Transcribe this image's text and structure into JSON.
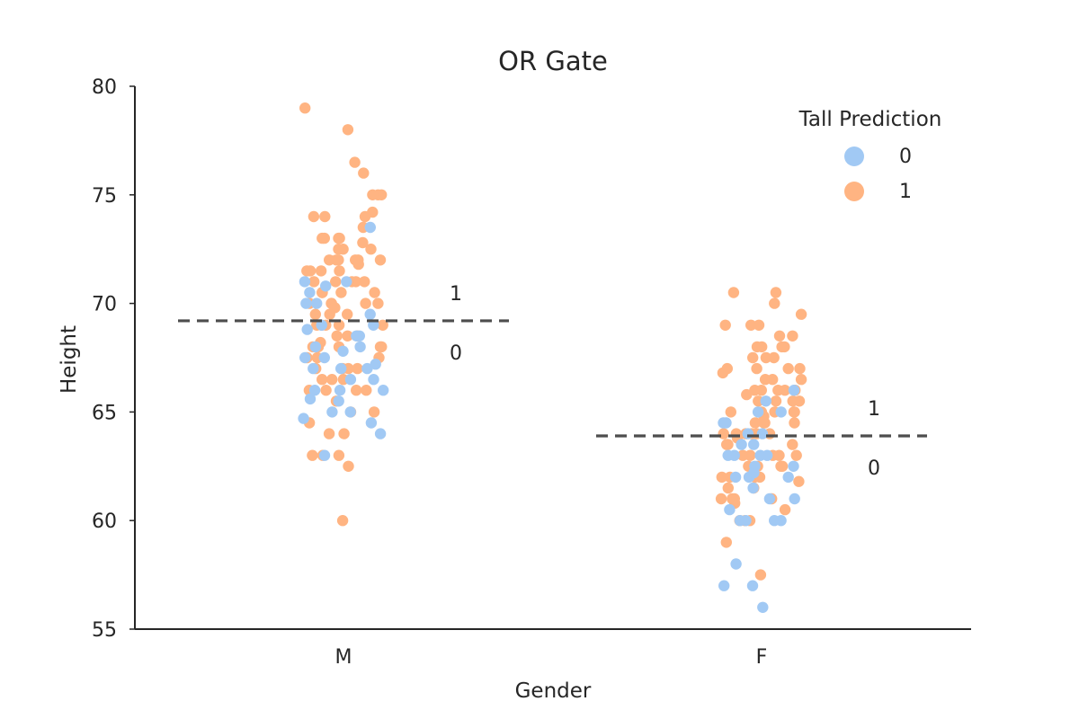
{
  "chart_data": {
    "type": "scatter",
    "title": "OR Gate",
    "xlabel": "Gender",
    "ylabel": "Height",
    "categories": [
      "M",
      "F"
    ],
    "ylim": [
      55,
      80
    ],
    "yticks": [
      55,
      60,
      65,
      70,
      75,
      80
    ],
    "grid": false,
    "legend": {
      "title": "Tall Prediction",
      "placement": "top-right",
      "entries": [
        {
          "label": "0",
          "color": "#a1c9f4"
        },
        {
          "label": "1",
          "color": "#ffb482"
        }
      ]
    },
    "thresholds": [
      {
        "category": "M",
        "value": 69.2,
        "label_above": "1",
        "label_below": "0"
      },
      {
        "category": "F",
        "value": 63.9,
        "label_above": "1",
        "label_below": "0"
      }
    ],
    "colors": {
      "0": "#a1c9f4",
      "1": "#ffb482",
      "threshold_line": "#4d4d4d",
      "axis": "#262626"
    },
    "series": [
      {
        "name": "0",
        "category": "M",
        "values": [
          63.0,
          64.0,
          64.7,
          65.0,
          65.0,
          65.5,
          65.6,
          66.0,
          66.0,
          66.5,
          66.5,
          67.0,
          67.0,
          67.0,
          67.2,
          67.5,
          67.5,
          68.0,
          68.0,
          68.5,
          68.5,
          69.0,
          69.0,
          69.5,
          70.0,
          70.0,
          70.5,
          71.0,
          71.0,
          73.5,
          64.5,
          66.0,
          67.8,
          68.8,
          70.8
        ]
      },
      {
        "name": "1",
        "category": "M",
        "values": [
          60.0,
          62.5,
          63.0,
          63.0,
          63.0,
          64.0,
          64.5,
          65.0,
          65.0,
          65.5,
          66.0,
          66.0,
          66.0,
          66.0,
          66.5,
          66.5,
          67.0,
          67.0,
          67.0,
          67.0,
          67.5,
          67.5,
          67.5,
          68.0,
          68.0,
          68.0,
          68.0,
          68.0,
          68.5,
          68.5,
          68.5,
          69.0,
          69.0,
          69.0,
          69.0,
          69.0,
          69.5,
          69.5,
          69.5,
          70.0,
          70.0,
          70.0,
          70.0,
          70.0,
          70.5,
          70.5,
          70.5,
          70.5,
          71.0,
          71.0,
          71.0,
          71.0,
          71.0,
          71.5,
          71.5,
          71.5,
          71.5,
          72.0,
          72.0,
          72.0,
          72.0,
          72.0,
          72.0,
          72.5,
          72.5,
          72.5,
          73.0,
          73.0,
          73.0,
          73.0,
          73.5,
          74.0,
          74.0,
          74.0,
          74.2,
          75.0,
          75.0,
          75.0,
          76.0,
          76.5,
          78.0,
          79.0,
          64.0,
          66.5,
          68.2,
          69.8,
          71.8,
          72.8
        ]
      },
      {
        "name": "0",
        "category": "F",
        "values": [
          56.0,
          57.0,
          57.0,
          58.0,
          60.0,
          60.0,
          60.0,
          60.0,
          61.0,
          61.0,
          61.5,
          62.0,
          62.0,
          62.0,
          62.5,
          62.5,
          63.0,
          63.0,
          63.0,
          63.0,
          63.5,
          63.5,
          64.0,
          64.0,
          64.5,
          64.5,
          65.0,
          65.0,
          65.5,
          66.0,
          60.5,
          62.2
        ]
      },
      {
        "name": "1",
        "category": "F",
        "values": [
          57.5,
          59.0,
          60.0,
          60.0,
          60.0,
          60.5,
          61.0,
          61.0,
          61.0,
          61.0,
          61.5,
          61.5,
          62.0,
          62.0,
          62.0,
          62.0,
          62.5,
          62.5,
          62.5,
          62.5,
          63.0,
          63.0,
          63.0,
          63.0,
          63.0,
          63.5,
          63.5,
          63.5,
          63.5,
          64.0,
          64.0,
          64.0,
          64.0,
          64.0,
          64.0,
          64.5,
          64.5,
          64.5,
          64.5,
          65.0,
          65.0,
          65.0,
          65.0,
          65.0,
          65.5,
          65.5,
          65.5,
          65.5,
          66.0,
          66.0,
          66.0,
          66.0,
          66.0,
          66.5,
          66.5,
          66.5,
          67.0,
          67.0,
          67.0,
          67.0,
          67.5,
          67.5,
          67.5,
          68.0,
          68.0,
          68.0,
          68.0,
          68.5,
          68.5,
          69.0,
          69.0,
          69.0,
          69.5,
          70.0,
          70.5,
          70.5,
          60.8,
          63.8,
          64.8,
          65.8,
          66.8,
          61.8
        ]
      }
    ]
  }
}
